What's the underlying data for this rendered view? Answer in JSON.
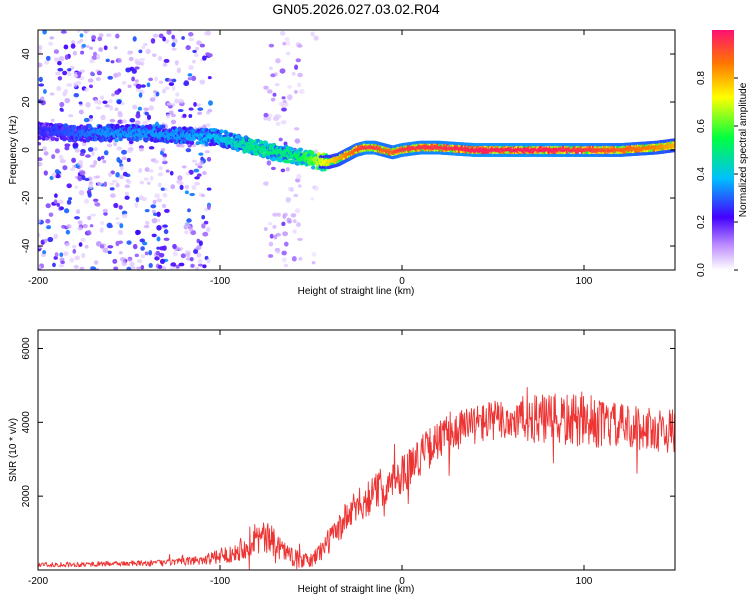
{
  "figure_title": "GN05.2026.027.03.02.R04",
  "chart_data": [
    {
      "type": "heatmap",
      "title": "GN05.2026.027.03.02.R04",
      "xlabel": "Height of straight line (km)",
      "ylabel": "Frequency (Hz)",
      "xlim": [
        -200,
        150
      ],
      "ylim": [
        -50,
        50
      ],
      "xticks": [
        -200,
        -100,
        0,
        100
      ],
      "xtick_labels": [
        "-200",
        "-100",
        "0",
        "100"
      ],
      "yticks": [
        -40,
        -20,
        0,
        20,
        40
      ],
      "ytick_labels": [
        "-40",
        "-20",
        "0",
        "20",
        "40"
      ],
      "colorbar": {
        "label": "Normalized spectral amplitude",
        "range": [
          0,
          1
        ],
        "ticks": [
          0.0,
          0.2,
          0.4,
          0.6,
          0.8
        ],
        "tick_labels": [
          "0.0",
          "0.2",
          "0.4",
          "0.6",
          "0.8"
        ]
      },
      "ridge": {
        "x": [
          -200,
          -180,
          -160,
          -140,
          -120,
          -100,
          -90,
          -80,
          -70,
          -60,
          -50,
          -45,
          -40,
          -35,
          -30,
          -25,
          -20,
          -15,
          -10,
          -5,
          0,
          10,
          20,
          40,
          60,
          80,
          100,
          120,
          140,
          150
        ],
        "frequency": [
          8,
          7,
          7,
          7,
          6,
          5,
          3,
          1,
          -1,
          -2,
          -4,
          -5,
          -5,
          -4,
          -2,
          0,
          1,
          1,
          0,
          -1,
          0,
          1,
          1,
          0,
          0,
          0,
          0,
          0,
          1,
          2
        ],
        "amplitude": [
          0.25,
          0.3,
          0.35,
          0.35,
          0.35,
          0.4,
          0.45,
          0.5,
          0.5,
          0.5,
          0.6,
          0.7,
          0.75,
          0.8,
          0.85,
          0.9,
          0.95,
          0.95,
          0.9,
          0.9,
          0.95,
          0.95,
          0.95,
          0.98,
          0.98,
          0.98,
          0.95,
          0.9,
          0.85,
          0.8
        ]
      },
      "noise_regions": [
        {
          "x_range": [
            -200,
            -105
          ],
          "density": "high"
        },
        {
          "x_range": [
            -75,
            -55
          ],
          "density": "medium"
        },
        {
          "x_range": [
            -50,
            -47
          ],
          "density": "low"
        }
      ]
    },
    {
      "type": "line",
      "xlabel": "Height of straight line (km)",
      "ylabel": "SNR (10 * v/v)",
      "xlim": [
        -200,
        150
      ],
      "ylim": [
        0,
        6500
      ],
      "xticks": [
        -200,
        -100,
        0,
        100
      ],
      "xtick_labels": [
        "-200",
        "-100",
        "0",
        "100"
      ],
      "yticks": [
        2000,
        4000,
        6000
      ],
      "ytick_labels": [
        "2000",
        "4000",
        "6000"
      ],
      "line_color": "#ee3333",
      "series": [
        {
          "name": "SNR",
          "x": [
            -200,
            -180,
            -160,
            -140,
            -120,
            -100,
            -90,
            -85,
            -80,
            -75,
            -70,
            -65,
            -60,
            -55,
            -50,
            -45,
            -40,
            -35,
            -30,
            -25,
            -20,
            -15,
            -10,
            -5,
            0,
            5,
            10,
            20,
            30,
            40,
            50,
            60,
            70,
            80,
            90,
            100,
            110,
            120,
            130,
            140,
            150
          ],
          "y": [
            150,
            150,
            170,
            180,
            220,
            350,
            550,
            700,
            900,
            850,
            750,
            550,
            350,
            250,
            250,
            500,
            800,
            1100,
            1450,
            1700,
            1900,
            2100,
            2300,
            2450,
            2600,
            2850,
            3100,
            3500,
            3800,
            3950,
            4050,
            4050,
            4100,
            4050,
            4050,
            4000,
            3950,
            3900,
            3850,
            3800,
            3750
          ],
          "noise": [
            70,
            70,
            70,
            80,
            100,
            200,
            300,
            400,
            500,
            450,
            400,
            300,
            250,
            200,
            200,
            300,
            350,
            400,
            450,
            450,
            500,
            500,
            550,
            550,
            550,
            550,
            550,
            550,
            550,
            550,
            550,
            600,
            650,
            700,
            750,
            700,
            650,
            600,
            600,
            600,
            600
          ]
        }
      ]
    }
  ]
}
